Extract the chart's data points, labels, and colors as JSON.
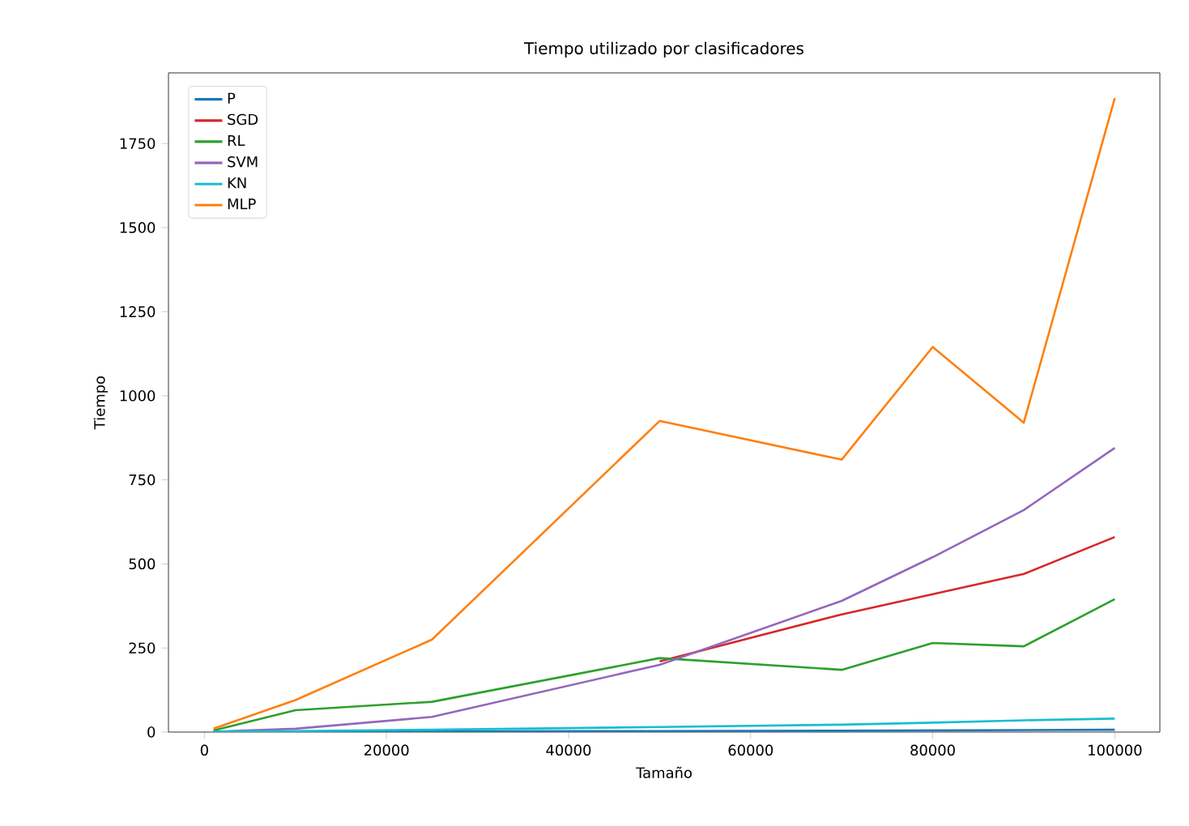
{
  "chart_data": {
    "type": "line",
    "title": "Tiempo utilizado por clasificadores",
    "xlabel": "Tamaño",
    "ylabel": "Tiempo",
    "x": [
      1000,
      10000,
      25000,
      50000,
      70000,
      80000,
      90000,
      100000
    ],
    "series": [
      {
        "name": "P",
        "color": "#1f77b4",
        "values": [
          1,
          1,
          2,
          3,
          4,
          5,
          6,
          7
        ]
      },
      {
        "name": "SGD",
        "color": "#d62728",
        "values": [
          null,
          null,
          null,
          210,
          350,
          410,
          470,
          580
        ]
      },
      {
        "name": "RL",
        "color": "#2ca02c",
        "values": [
          5,
          65,
          90,
          220,
          185,
          265,
          255,
          395
        ]
      },
      {
        "name": "SVM",
        "color": "#9467bd",
        "values": [
          1,
          10,
          45,
          200,
          390,
          520,
          660,
          845
        ]
      },
      {
        "name": "KN",
        "color": "#17becf",
        "values": [
          1,
          3,
          7,
          15,
          22,
          28,
          35,
          40
        ]
      },
      {
        "name": "MLP",
        "color": "#ff7f0e",
        "values": [
          10,
          95,
          275,
          925,
          810,
          1145,
          920,
          1885
        ]
      }
    ],
    "xlim": [
      -3950,
      104950
    ],
    "ylim": [
      0,
      1960
    ],
    "xticks": [
      0,
      20000,
      40000,
      60000,
      80000,
      100000
    ],
    "yticks": [
      0,
      250,
      500,
      750,
      1000,
      1250,
      1500,
      1750
    ],
    "legend": "top left",
    "grid": false
  }
}
